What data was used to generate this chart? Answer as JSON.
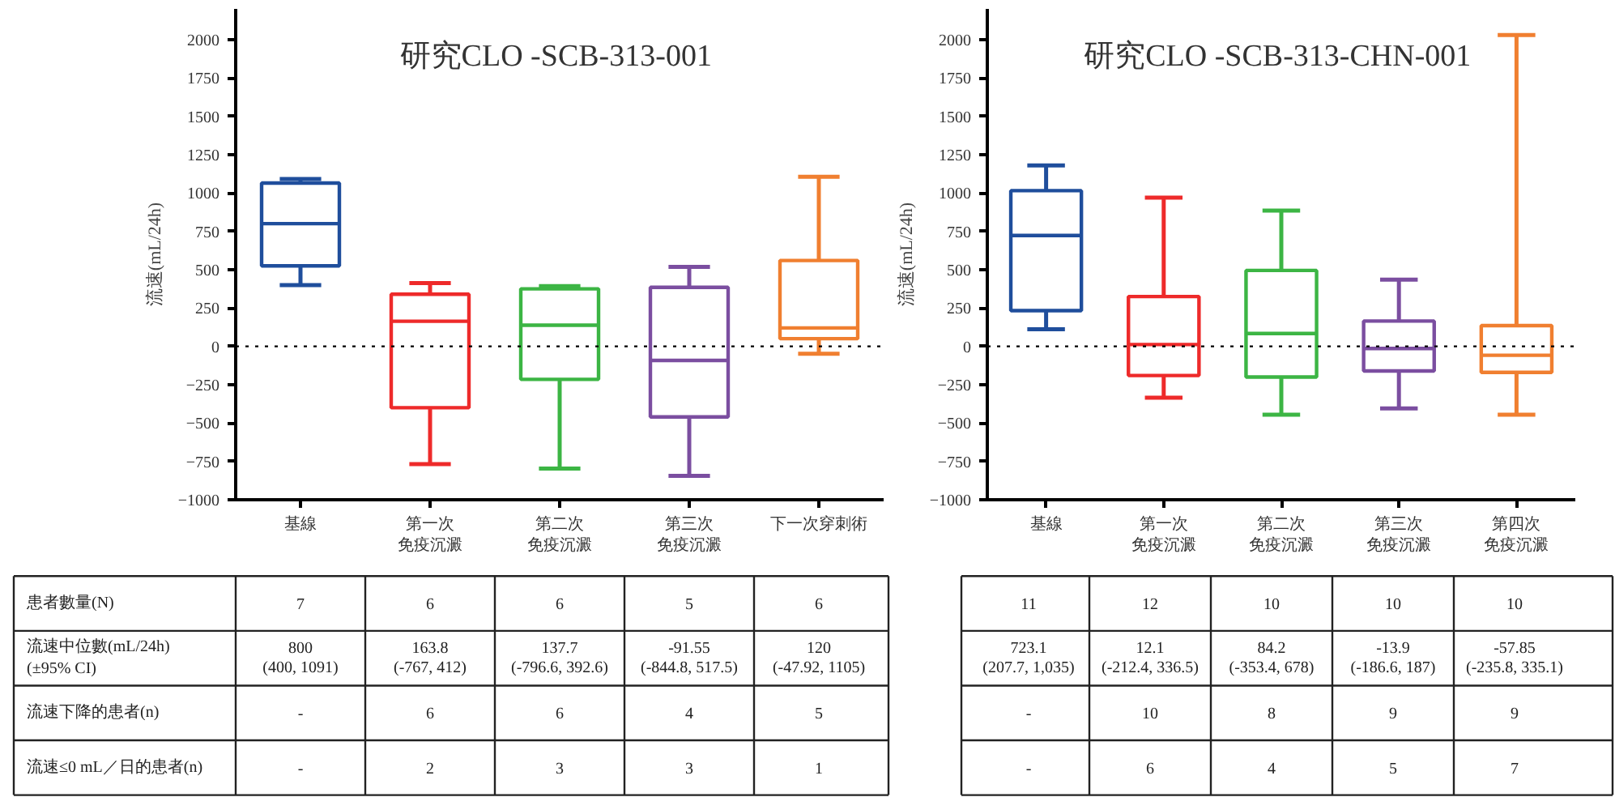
{
  "chart_data": [
    {
      "type": "box",
      "title": "研究CLO  -SCB-313-001",
      "ylabel": "流速(mL/24h)",
      "categories": [
        "基線",
        "第一次免疫沉澱",
        "第二次免疫沉澱",
        "第三次免疫沉澱",
        "下一次穿刺術"
      ],
      "colors": [
        "#1f4e9c",
        "#ee2a2a",
        "#3cb544",
        "#7b4ea0",
        "#f07f30"
      ],
      "boxes": [
        {
          "low": 400,
          "q1": 525,
          "median": 800,
          "q3": 1065,
          "high": 1091
        },
        {
          "low": -767,
          "q1": -400,
          "median": 163.8,
          "q3": 340,
          "high": 412
        },
        {
          "low": -796.6,
          "q1": -215,
          "median": 137.7,
          "q3": 375,
          "high": 392.6
        },
        {
          "low": -844.8,
          "q1": -460,
          "median": -91.55,
          "q3": 385,
          "high": 517.5
        },
        {
          "low": -47.92,
          "q1": 50,
          "median": 120,
          "q3": 560,
          "high": 1105
        }
      ],
      "ylim": [
        -1000,
        2200
      ],
      "yticks": [
        -1000,
        -750,
        -500,
        -250,
        0,
        250,
        500,
        750,
        1000,
        1250,
        1500,
        1750,
        2000
      ],
      "ref_lines": [
        {
          "axis": "y",
          "value": 0,
          "color": "#000000",
          "line_style": "dotted"
        }
      ],
      "annotations": [
        "患者數量(N)",
        "7",
        "6",
        "6",
        "5",
        "6",
        "流速中位數(mL/24h)\n   (±95% CI)",
        "800\n(400, 1091)",
        "163.8\n(-767, 412)",
        "137.7\n(-796.6, 392.6)",
        "-91.55\n(-844.8, 517.5)",
        "120\n(-47.92, 1105)",
        "流速下降的患者(n)",
        "-",
        "6",
        "6",
        "4",
        "5",
        "流速≤0 mL／日的患者(n)",
        "-",
        "2",
        "3",
        "3",
        "1"
      ]
    },
    {
      "type": "box",
      "title": "研究CLO  -SCB-313-CHN-001",
      "ylabel": "流速(mL/24h)",
      "categories": [
        "基線",
        "第一次免疫沉澱",
        "第二次免疫沉澱",
        "第三次免疫沉澱",
        "第四次免疫沉澱"
      ],
      "colors": [
        "#1f4e9c",
        "#ee2a2a",
        "#3cb544",
        "#7b4ea0",
        "#f07f30"
      ],
      "boxes": [
        {
          "low": 112,
          "q1": 233,
          "median": 723.1,
          "q3": 1015,
          "high": 1180
        },
        {
          "low": -335,
          "q1": -190,
          "median": 12.1,
          "q3": 325,
          "high": 970
        },
        {
          "low": -445,
          "q1": -200,
          "median": 84.2,
          "q3": 495,
          "high": 885
        },
        {
          "low": -405,
          "q1": -160,
          "median": -13.9,
          "q3": 165,
          "high": 435
        },
        {
          "low": -445,
          "q1": -170,
          "median": -57.85,
          "q3": 135,
          "high": 2030
        }
      ],
      "ylim": [
        -1000,
        2200
      ],
      "yticks": [
        -1000,
        -750,
        -500,
        -250,
        0,
        250,
        500,
        750,
        1000,
        1250,
        1500,
        1750,
        2000
      ],
      "ref_lines": [
        {
          "axis": "y",
          "value": 0,
          "color": "#000000",
          "line_style": "dotted"
        }
      ],
      "annotations": [
        "11",
        "12",
        "10",
        "10",
        "10",
        "723.1\n(207.7, 1,035)",
        "12.1\n(-212.4, 336.5)",
        "84.2\n(-353.4, 678)",
        "-13.9\n(-186.6, 187)",
        "-57.85\n(-235.8, 335.1)",
        "-",
        "10",
        "8",
        "9",
        "9",
        "-",
        "6",
        "4",
        "5",
        "7"
      ]
    }
  ]
}
